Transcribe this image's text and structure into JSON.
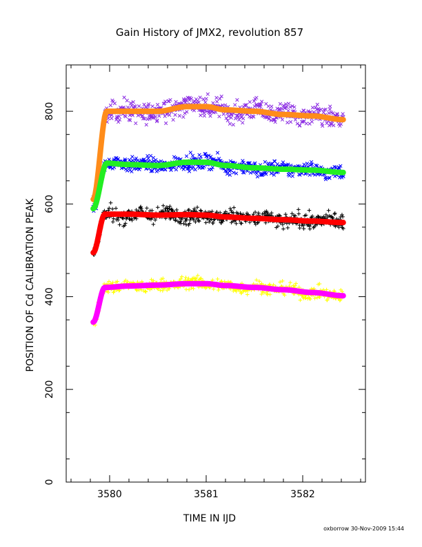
{
  "chart_data": {
    "type": "scatter",
    "title": "Gain History of JMX2, revolution 857",
    "xlabel": "TIME IN IJD",
    "ylabel": "POSITION OF Cd CALIBRATION PEAK",
    "xlim": [
      3579.55,
      3582.65
    ],
    "ylim": [
      0,
      900
    ],
    "x_ticks": [
      3580,
      3581,
      3582
    ],
    "x_tick_labels": [
      "3580",
      "3581",
      "3582"
    ],
    "y_ticks": [
      0,
      200,
      400,
      600,
      800
    ],
    "y_tick_labels": [
      "0",
      "200",
      "400",
      "600",
      "800"
    ],
    "x_start": 3579.83,
    "x_end": 3582.42,
    "rise_end": 3579.97,
    "series": [
      {
        "role": "scatter",
        "marker": "x",
        "color": "#8a2be2",
        "scatter": 20,
        "curve": [
          [
            3579.83,
            610
          ],
          [
            3579.97,
            800
          ],
          [
            3580.2,
            800
          ],
          [
            3580.5,
            800
          ],
          [
            3580.8,
            810
          ],
          [
            3581.0,
            810
          ],
          [
            3581.2,
            803
          ],
          [
            3581.5,
            800
          ],
          [
            3581.8,
            793
          ],
          [
            3582.1,
            790
          ],
          [
            3582.42,
            782
          ]
        ]
      },
      {
        "role": "fit",
        "color": "#ff8c1a",
        "curve": [
          [
            3579.83,
            610
          ],
          [
            3579.97,
            800
          ],
          [
            3580.2,
            800
          ],
          [
            3580.5,
            800
          ],
          [
            3580.8,
            810
          ],
          [
            3581.0,
            810
          ],
          [
            3581.2,
            803
          ],
          [
            3581.5,
            800
          ],
          [
            3581.8,
            793
          ],
          [
            3582.1,
            790
          ],
          [
            3582.42,
            782
          ]
        ]
      },
      {
        "role": "scatter",
        "marker": "x",
        "color": "#0000ff",
        "scatter": 14,
        "curve": [
          [
            3579.83,
            590
          ],
          [
            3579.97,
            688
          ],
          [
            3580.2,
            685
          ],
          [
            3580.5,
            683
          ],
          [
            3580.8,
            690
          ],
          [
            3581.0,
            690
          ],
          [
            3581.2,
            683
          ],
          [
            3581.5,
            678
          ],
          [
            3581.8,
            675
          ],
          [
            3582.1,
            673
          ],
          [
            3582.42,
            668
          ]
        ]
      },
      {
        "role": "fit",
        "color": "#22ee22",
        "curve": [
          [
            3579.83,
            590
          ],
          [
            3579.97,
            688
          ],
          [
            3580.2,
            685
          ],
          [
            3580.5,
            683
          ],
          [
            3580.8,
            690
          ],
          [
            3581.0,
            690
          ],
          [
            3581.2,
            683
          ],
          [
            3581.5,
            678
          ],
          [
            3581.8,
            675
          ],
          [
            3582.1,
            673
          ],
          [
            3582.42,
            668
          ]
        ]
      },
      {
        "role": "scatter",
        "marker": "+",
        "color": "#000000",
        "scatter": 15,
        "curve": [
          [
            3579.83,
            495
          ],
          [
            3579.95,
            578
          ],
          [
            3580.2,
            578
          ],
          [
            3580.5,
            576
          ],
          [
            3580.8,
            577
          ],
          [
            3581.0,
            576
          ],
          [
            3581.2,
            572
          ],
          [
            3581.5,
            569
          ],
          [
            3581.8,
            566
          ],
          [
            3582.1,
            563
          ],
          [
            3582.42,
            560
          ]
        ]
      },
      {
        "role": "fit",
        "color": "#ff0000",
        "curve": [
          [
            3579.83,
            495
          ],
          [
            3579.95,
            578
          ],
          [
            3580.2,
            578
          ],
          [
            3580.5,
            576
          ],
          [
            3580.8,
            577
          ],
          [
            3581.0,
            576
          ],
          [
            3581.2,
            572
          ],
          [
            3581.5,
            569
          ],
          [
            3581.8,
            566
          ],
          [
            3582.1,
            563
          ],
          [
            3582.42,
            560
          ]
        ]
      },
      {
        "role": "scatter",
        "marker": "+",
        "color": "#ffff00",
        "scatter": 12,
        "curve": [
          [
            3579.83,
            345
          ],
          [
            3579.95,
            420
          ],
          [
            3580.2,
            423
          ],
          [
            3580.5,
            425
          ],
          [
            3580.8,
            428
          ],
          [
            3581.0,
            428
          ],
          [
            3581.2,
            424
          ],
          [
            3581.5,
            420
          ],
          [
            3581.8,
            415
          ],
          [
            3582.1,
            409
          ],
          [
            3582.42,
            402
          ]
        ]
      },
      {
        "role": "fit",
        "color": "#ff00ff",
        "curve": [
          [
            3579.83,
            345
          ],
          [
            3579.95,
            420
          ],
          [
            3580.2,
            423
          ],
          [
            3580.5,
            425
          ],
          [
            3580.8,
            428
          ],
          [
            3581.0,
            428
          ],
          [
            3581.2,
            424
          ],
          [
            3581.5,
            420
          ],
          [
            3581.8,
            415
          ],
          [
            3582.1,
            409
          ],
          [
            3582.42,
            402
          ]
        ]
      }
    ],
    "grid": false,
    "legend": "none"
  },
  "footer": "oxborrow 30-Nov-2009 15:44"
}
